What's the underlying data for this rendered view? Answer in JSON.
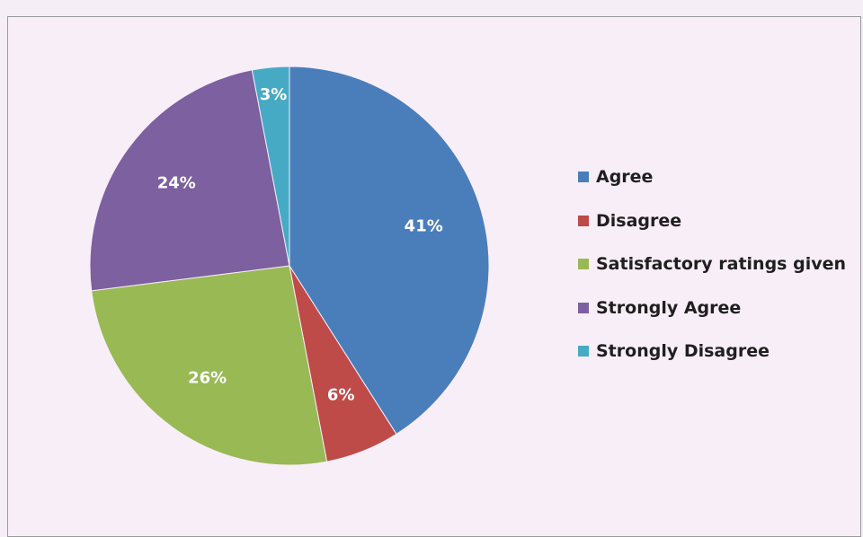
{
  "chart_data": {
    "type": "pie",
    "slices": [
      {
        "label": "Agree",
        "value": 41,
        "display": "41%",
        "color": "#4a7ebb"
      },
      {
        "label": "Disagree",
        "value": 6,
        "display": "6%",
        "color": "#be4b48"
      },
      {
        "label": "Satisfactory ratings given",
        "value": 26,
        "display": "26%",
        "color": "#98b954"
      },
      {
        "label": "Strongly Agree",
        "value": 24,
        "display": "24%",
        "color": "#7d60a0"
      },
      {
        "label": "Strongly Disagree",
        "value": 3,
        "display": "3%",
        "color": "#46aac5"
      }
    ],
    "legend_position": "right",
    "start_angle": "top",
    "direction": "clockwise"
  }
}
